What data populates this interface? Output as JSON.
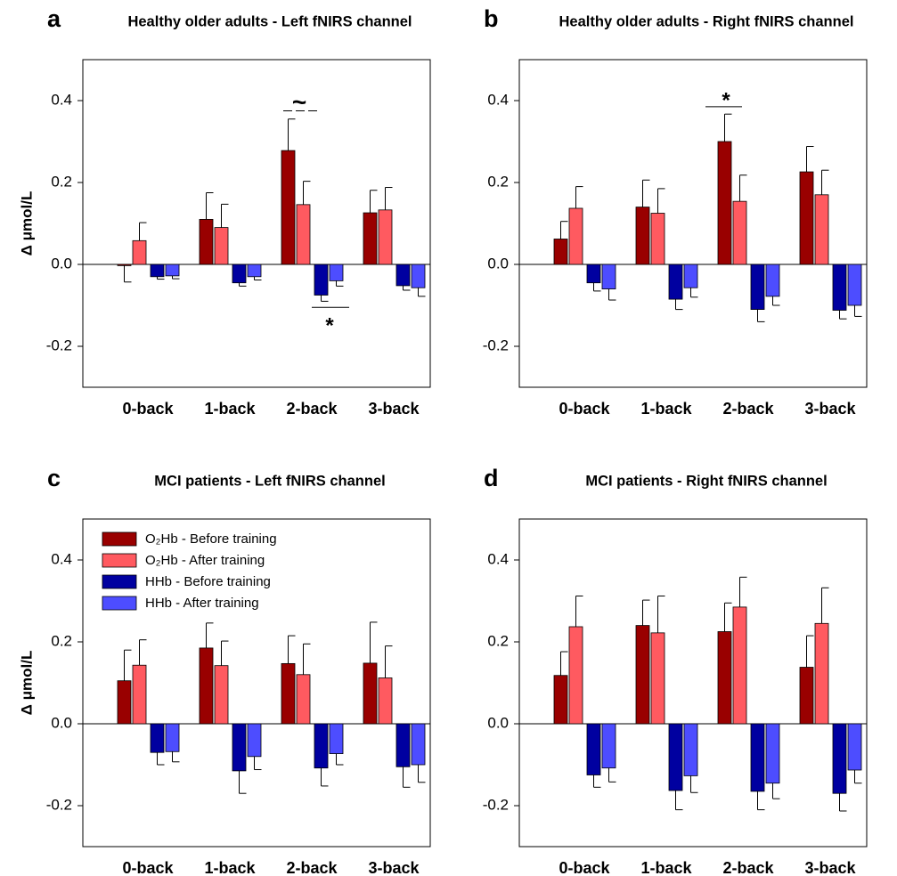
{
  "chart_data": [
    {
      "type": "bar",
      "label": "a",
      "title": "Healthy older adults - Left fNIRS channel",
      "ylabel": "Δ μmol/L",
      "categories": [
        "0-back",
        "1-back",
        "2-back",
        "3-back"
      ],
      "ylim": [
        -0.3,
        0.5
      ],
      "yticks": [
        -0.2,
        {
          "value": 0,
          "label": "0.0"
        },
        0.2,
        0.4
      ],
      "annotations": [
        "~",
        "*"
      ],
      "series": [
        {
          "name": "O₂Hb - Before training",
          "color": "#990000",
          "values": [
            -0.003,
            0.11,
            0.278,
            0.126
          ],
          "errors": [
            0.04,
            0.065,
            0.077,
            0.055
          ]
        },
        {
          "name": "O₂Hb - After training",
          "color": "#ff5a60",
          "values": [
            0.058,
            0.09,
            0.146,
            0.133
          ],
          "errors": [
            0.044,
            0.057,
            0.057,
            0.055
          ]
        },
        {
          "name": "HHb - Before training",
          "color": "#0000a0",
          "values": [
            -0.03,
            -0.045,
            -0.075,
            -0.052
          ],
          "errors": [
            0.006,
            0.008,
            0.015,
            0.011
          ]
        },
        {
          "name": "HHb - After training",
          "color": "#4d4dff",
          "values": [
            -0.028,
            -0.03,
            -0.04,
            -0.057
          ],
          "errors": [
            0.007,
            0.008,
            0.013,
            0.021
          ]
        }
      ]
    },
    {
      "type": "bar",
      "label": "b",
      "title": "Healthy older adults - Right fNIRS channel",
      "categories": [
        "0-back",
        "1-back",
        "2-back",
        "3-back"
      ],
      "ylim": [
        -0.3,
        0.5
      ],
      "yticks": [
        -0.2,
        {
          "value": 0,
          "label": "0.0"
        },
        0.2,
        0.4
      ],
      "annotations": [
        "*"
      ],
      "series": [
        {
          "name": "O₂Hb - Before training",
          "color": "#990000",
          "values": [
            0.062,
            0.14,
            0.3,
            0.226
          ],
          "errors": [
            0.043,
            0.066,
            0.067,
            0.062
          ]
        },
        {
          "name": "O₂Hb - After training",
          "color": "#ff5a60",
          "values": [
            0.137,
            0.125,
            0.154,
            0.17
          ],
          "errors": [
            0.053,
            0.06,
            0.064,
            0.06
          ]
        },
        {
          "name": "HHb - Before training",
          "color": "#0000a0",
          "values": [
            -0.045,
            -0.085,
            -0.11,
            -0.112
          ],
          "errors": [
            0.02,
            0.025,
            0.03,
            0.021
          ]
        },
        {
          "name": "HHb - After training",
          "color": "#4d4dff",
          "values": [
            -0.06,
            -0.057,
            -0.078,
            -0.1
          ],
          "errors": [
            0.027,
            0.023,
            0.022,
            0.027
          ]
        }
      ]
    },
    {
      "type": "bar",
      "label": "c",
      "title": "MCI patients - Left fNIRS channel",
      "ylabel": "Δ μmol/L",
      "categories": [
        "0-back",
        "1-back",
        "2-back",
        "3-back"
      ],
      "ylim": [
        -0.3,
        0.5
      ],
      "yticks": [
        -0.2,
        {
          "value": 0,
          "label": "0.0"
        },
        0.2,
        0.4
      ],
      "legend": "upper left",
      "series": [
        {
          "name": "O₂Hb - Before training",
          "color": "#990000",
          "values": [
            0.105,
            0.185,
            0.147,
            0.148
          ],
          "errors": [
            0.075,
            0.061,
            0.068,
            0.1
          ]
        },
        {
          "name": "O₂Hb - After training",
          "color": "#ff5a60",
          "values": [
            0.143,
            0.142,
            0.12,
            0.112
          ],
          "errors": [
            0.062,
            0.06,
            0.075,
            0.078
          ]
        },
        {
          "name": "HHb - Before training",
          "color": "#0000a0",
          "values": [
            -0.07,
            -0.115,
            -0.108,
            -0.105
          ],
          "errors": [
            0.03,
            0.055,
            0.044,
            0.05
          ]
        },
        {
          "name": "HHb - After training",
          "color": "#4d4dff",
          "values": [
            -0.068,
            -0.08,
            -0.073,
            -0.1
          ],
          "errors": [
            0.025,
            0.032,
            0.027,
            0.043
          ]
        }
      ]
    },
    {
      "type": "bar",
      "label": "d",
      "title": "MCI patients - Right fNIRS channel",
      "categories": [
        "0-back",
        "1-back",
        "2-back",
        "3-back"
      ],
      "ylim": [
        -0.3,
        0.5
      ],
      "yticks": [
        -0.2,
        {
          "value": 0,
          "label": "0.0"
        },
        0.2,
        0.4
      ],
      "series": [
        {
          "name": "O₂Hb - Before training",
          "color": "#990000",
          "values": [
            0.118,
            0.24,
            0.225,
            0.138
          ],
          "errors": [
            0.058,
            0.062,
            0.07,
            0.077
          ]
        },
        {
          "name": "O₂Hb - After training",
          "color": "#ff5a60",
          "values": [
            0.237,
            0.222,
            0.285,
            0.245
          ],
          "errors": [
            0.075,
            0.09,
            0.073,
            0.087
          ]
        },
        {
          "name": "HHb - Before training",
          "color": "#0000a0",
          "values": [
            -0.125,
            -0.163,
            -0.165,
            -0.17
          ],
          "errors": [
            0.03,
            0.047,
            0.045,
            0.043
          ]
        },
        {
          "name": "HHb - After training",
          "color": "#4d4dff",
          "values": [
            -0.108,
            -0.127,
            -0.145,
            -0.113
          ],
          "errors": [
            0.034,
            0.041,
            0.038,
            0.032
          ]
        }
      ]
    }
  ]
}
